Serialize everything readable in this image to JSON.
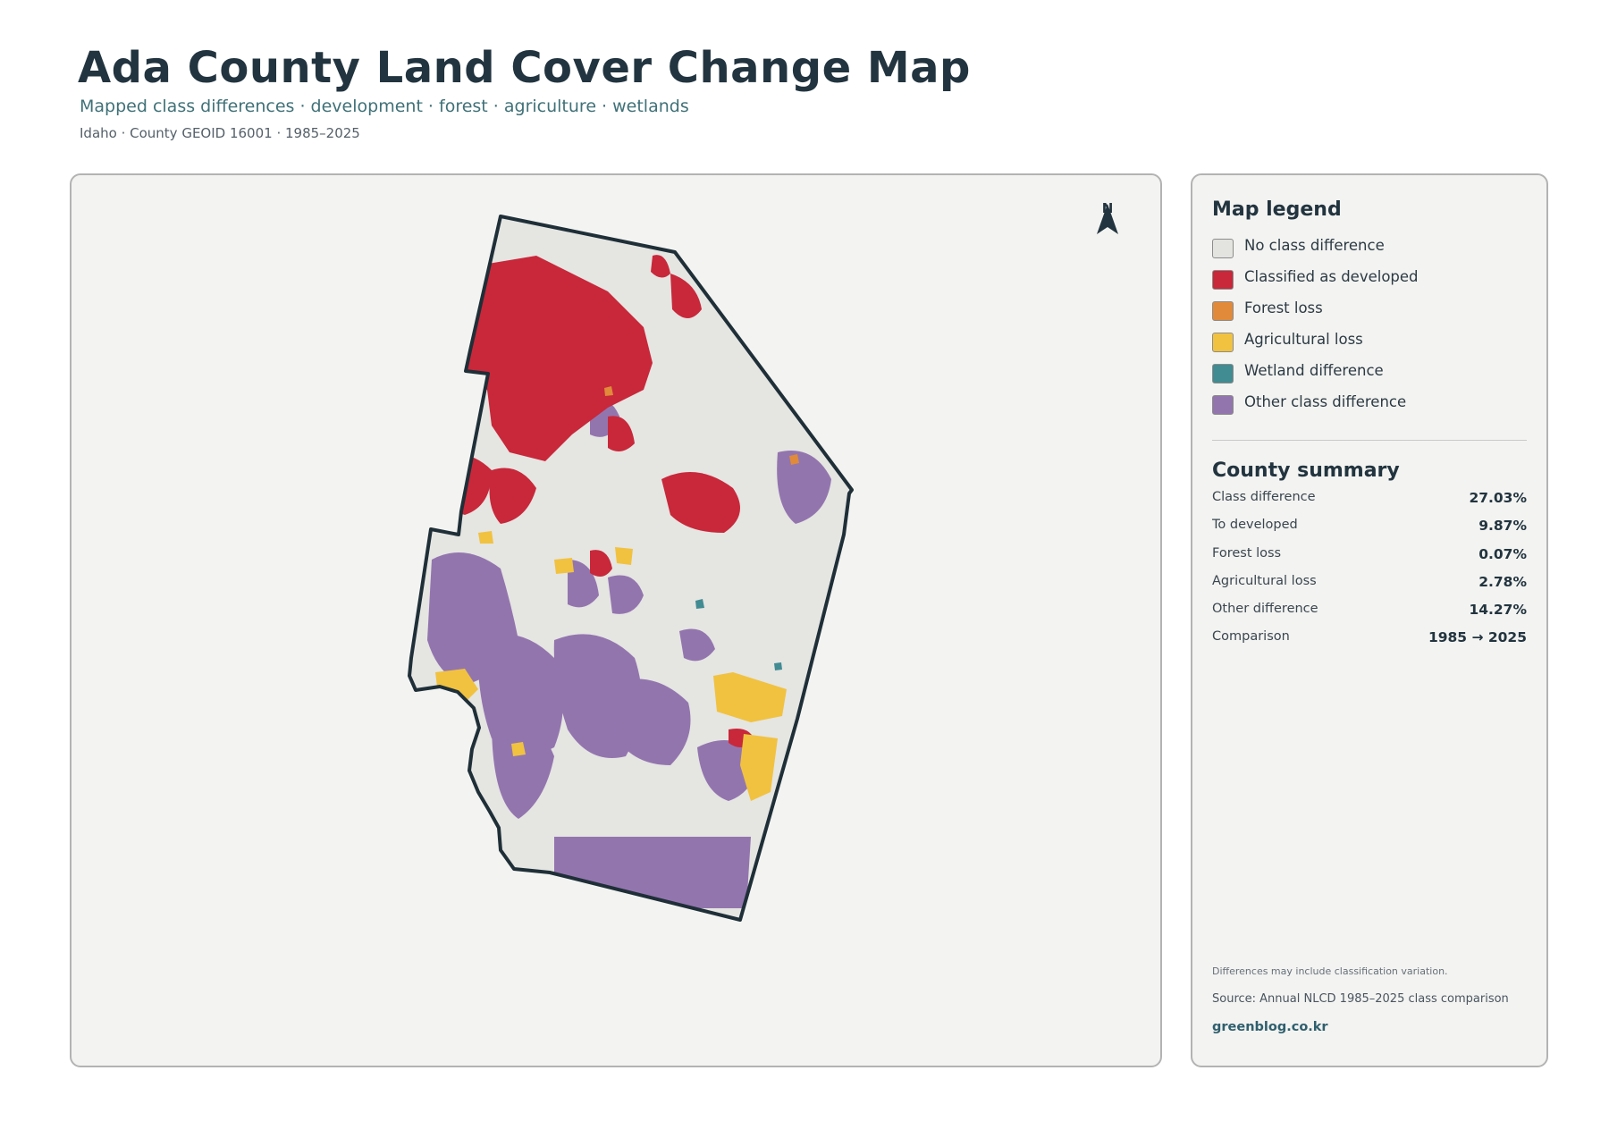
{
  "header": {
    "title": "Ada County Land Cover Change Map",
    "subtitle": "Mapped class differences · development · forest · agriculture · wetlands",
    "meta": "Idaho · County GEOID 16001 · 1985–2025"
  },
  "map": {
    "north_label": "N",
    "boundary_color": "#1f2f38",
    "background_color": "#e5e5e2"
  },
  "legend": {
    "title": "Map legend",
    "items": [
      {
        "label": "No class difference",
        "color": "#e3e3e0"
      },
      {
        "label": "Classified as developed",
        "color": "#c8283a"
      },
      {
        "label": "Forest loss",
        "color": "#e08a3a"
      },
      {
        "label": "Agricultural loss",
        "color": "#f1c240"
      },
      {
        "label": "Wetland difference",
        "color": "#418b92"
      },
      {
        "label": "Other class difference",
        "color": "#9375ae"
      }
    ]
  },
  "summary": {
    "title": "County summary",
    "rows": [
      {
        "label": "Class difference",
        "value": "27.03%"
      },
      {
        "label": "To developed",
        "value": "9.87%"
      },
      {
        "label": "Forest loss",
        "value": "0.07%"
      },
      {
        "label": "Agricultural loss",
        "value": "2.78%"
      },
      {
        "label": "Other difference",
        "value": "14.27%"
      },
      {
        "label": "Comparison",
        "value": "1985 → 2025"
      }
    ]
  },
  "footer": {
    "note": "Differences may include classification variation.",
    "source": "Source: Annual NLCD 1985–2025 class comparison",
    "site": "greenblog.co.kr"
  }
}
